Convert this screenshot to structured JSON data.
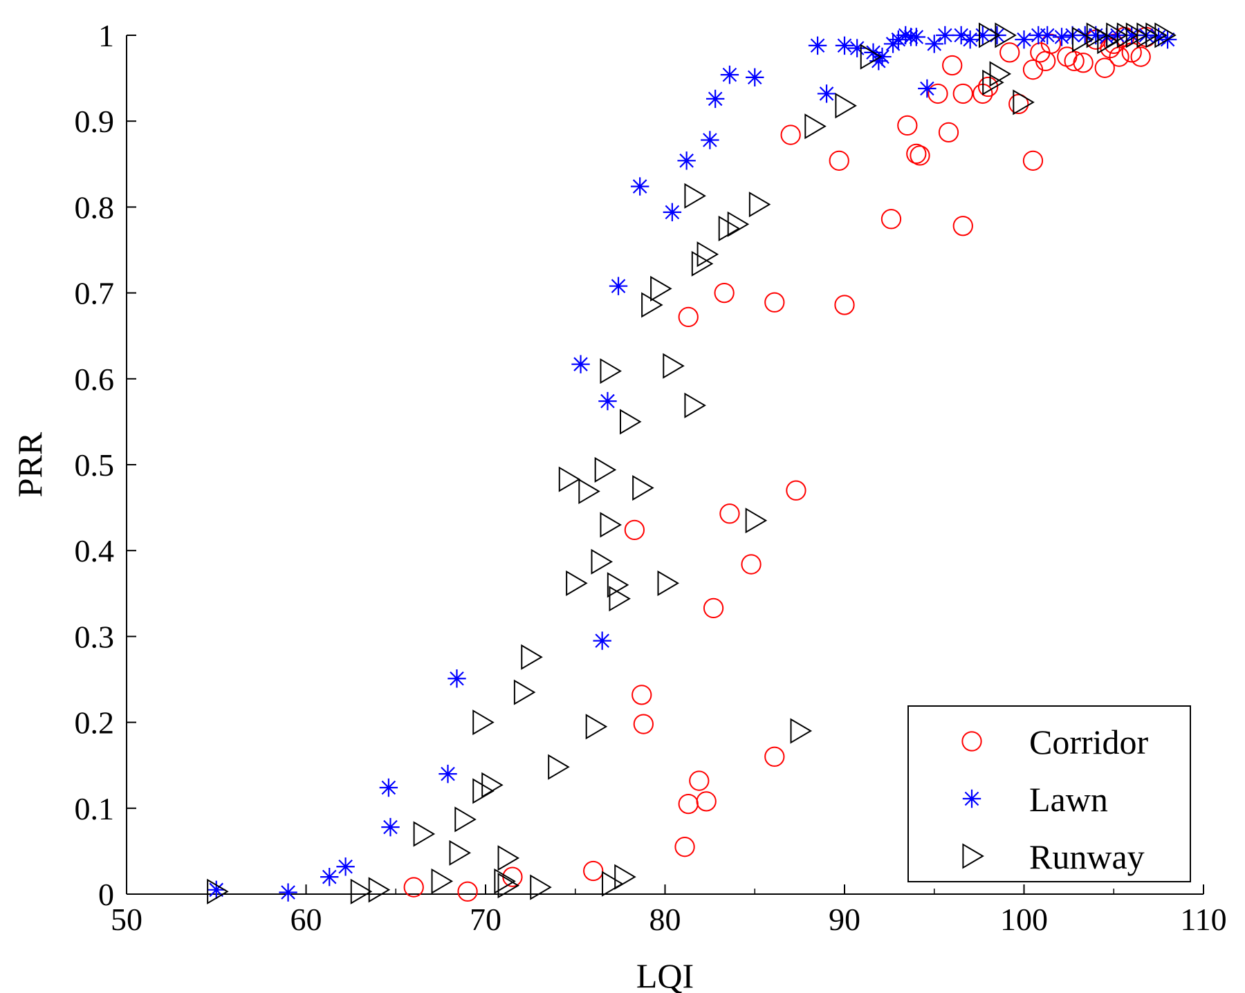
{
  "chart_data": {
    "type": "scatter",
    "title": "",
    "xlabel": "LQI",
    "ylabel": "PRR",
    "xlim": [
      50,
      110
    ],
    "ylim": [
      0,
      1
    ],
    "x_ticks": [
      50,
      60,
      70,
      80,
      90,
      100,
      110
    ],
    "y_ticks": [
      0,
      0.1,
      0.2,
      0.3,
      0.4,
      0.5,
      0.6,
      0.7,
      0.8,
      0.9,
      1
    ],
    "y_tick_labels": [
      "0",
      "0.1",
      "0.2",
      "0.3",
      "0.4",
      "0.5",
      "0.6",
      "0.7",
      "0.8",
      "0.9",
      "1"
    ],
    "grid": false,
    "legend_position": "bottom-right",
    "series": [
      {
        "name": "Corridor",
        "marker": "circle",
        "color": "#ff0000",
        "points": [
          [
            66.0,
            0.008
          ],
          [
            69.0,
            0.003
          ],
          [
            71.5,
            0.02
          ],
          [
            76.0,
            0.027
          ],
          [
            78.3,
            0.424
          ],
          [
            78.7,
            0.232
          ],
          [
            78.8,
            0.198
          ],
          [
            81.1,
            0.055
          ],
          [
            81.3,
            0.105
          ],
          [
            81.9,
            0.132
          ],
          [
            82.3,
            0.108
          ],
          [
            82.7,
            0.333
          ],
          [
            81.3,
            0.672
          ],
          [
            83.3,
            0.7
          ],
          [
            83.6,
            0.443
          ],
          [
            84.8,
            0.384
          ],
          [
            86.1,
            0.16
          ],
          [
            86.1,
            0.689
          ],
          [
            87.0,
            0.884
          ],
          [
            87.3,
            0.47
          ],
          [
            89.7,
            0.854
          ],
          [
            90.0,
            0.686
          ],
          [
            92.6,
            0.786
          ],
          [
            93.5,
            0.895
          ],
          [
            94.0,
            0.862
          ],
          [
            94.2,
            0.86
          ],
          [
            95.2,
            0.932
          ],
          [
            95.8,
            0.887
          ],
          [
            96.0,
            0.965
          ],
          [
            96.6,
            0.932
          ],
          [
            96.6,
            0.778
          ],
          [
            97.7,
            0.932
          ],
          [
            98.0,
            0.94
          ],
          [
            99.2,
            0.98
          ],
          [
            99.7,
            0.92
          ],
          [
            100.5,
            0.96
          ],
          [
            100.5,
            0.854
          ],
          [
            100.9,
            0.98
          ],
          [
            101.2,
            0.97
          ],
          [
            101.5,
            0.99
          ],
          [
            102.4,
            0.975
          ],
          [
            102.8,
            0.97
          ],
          [
            103.3,
            0.968
          ],
          [
            104.0,
            0.995
          ],
          [
            104.5,
            0.962
          ],
          [
            104.8,
            0.985
          ],
          [
            105.0,
            0.99
          ],
          [
            105.3,
            0.975
          ],
          [
            105.6,
            0.998
          ],
          [
            106.0,
            0.98
          ],
          [
            106.5,
            0.975
          ],
          [
            106.8,
            0.998
          ]
        ]
      },
      {
        "name": "Lawn",
        "marker": "asterisk",
        "color": "#0000ff",
        "points": [
          [
            55.0,
            0.005
          ],
          [
            59.0,
            0.002
          ],
          [
            61.3,
            0.02
          ],
          [
            62.2,
            0.032
          ],
          [
            64.6,
            0.124
          ],
          [
            64.7,
            0.078
          ],
          [
            67.9,
            0.14
          ],
          [
            68.4,
            0.251
          ],
          [
            75.3,
            0.617
          ],
          [
            76.5,
            0.295
          ],
          [
            76.8,
            0.574
          ],
          [
            77.4,
            0.708
          ],
          [
            78.6,
            0.824
          ],
          [
            80.4,
            0.794
          ],
          [
            81.2,
            0.854
          ],
          [
            82.5,
            0.878
          ],
          [
            82.8,
            0.926
          ],
          [
            83.6,
            0.954
          ],
          [
            85.0,
            0.951
          ],
          [
            88.5,
            0.988
          ],
          [
            89.0,
            0.932
          ],
          [
            90.0,
            0.988
          ],
          [
            90.7,
            0.985
          ],
          [
            91.6,
            0.98
          ],
          [
            91.9,
            0.97
          ],
          [
            92.1,
            0.975
          ],
          [
            92.7,
            0.99
          ],
          [
            93.0,
            0.995
          ],
          [
            93.4,
            1.0
          ],
          [
            93.7,
            0.998
          ],
          [
            94.0,
            0.998
          ],
          [
            94.6,
            0.938
          ],
          [
            95.0,
            0.99
          ],
          [
            95.6,
            1.0
          ],
          [
            96.5,
            1.0
          ],
          [
            97.0,
            0.995
          ],
          [
            97.7,
            1.0
          ],
          [
            98.5,
            1.0
          ],
          [
            100.0,
            0.995
          ],
          [
            100.8,
            1.0
          ],
          [
            101.3,
            1.0
          ],
          [
            102.1,
            0.998
          ],
          [
            102.7,
            1.0
          ],
          [
            103.4,
            1.0
          ],
          [
            104.0,
            1.0
          ],
          [
            104.6,
            0.998
          ],
          [
            105.2,
            1.0
          ],
          [
            106.0,
            1.0
          ],
          [
            106.8,
            1.0
          ],
          [
            107.5,
            0.998
          ],
          [
            108.0,
            0.995
          ]
        ]
      },
      {
        "name": "Runway",
        "marker": "triangle-right",
        "color": "#000000",
        "points": [
          [
            55.0,
            0.003
          ],
          [
            63.0,
            0.003
          ],
          [
            64.0,
            0.005
          ],
          [
            66.5,
            0.07
          ],
          [
            67.5,
            0.015
          ],
          [
            68.5,
            0.048
          ],
          [
            68.8,
            0.087
          ],
          [
            69.8,
            0.2
          ],
          [
            69.8,
            0.12
          ],
          [
            70.3,
            0.127
          ],
          [
            71.0,
            0.015
          ],
          [
            71.2,
            0.042
          ],
          [
            71.2,
            0.01
          ],
          [
            72.1,
            0.235
          ],
          [
            72.5,
            0.276
          ],
          [
            73.0,
            0.008
          ],
          [
            74.0,
            0.148
          ],
          [
            74.6,
            0.483
          ],
          [
            75.0,
            0.362
          ],
          [
            75.7,
            0.469
          ],
          [
            76.1,
            0.195
          ],
          [
            76.4,
            0.387
          ],
          [
            76.6,
            0.494
          ],
          [
            76.9,
            0.609
          ],
          [
            76.9,
            0.43
          ],
          [
            77.0,
            0.012
          ],
          [
            77.3,
            0.36
          ],
          [
            77.4,
            0.344
          ],
          [
            77.7,
            0.02
          ],
          [
            78.0,
            0.55
          ],
          [
            78.7,
            0.473
          ],
          [
            79.2,
            0.686
          ],
          [
            79.7,
            0.705
          ],
          [
            80.1,
            0.362
          ],
          [
            80.4,
            0.615
          ],
          [
            81.6,
            0.569
          ],
          [
            81.6,
            0.813
          ],
          [
            82.0,
            0.734
          ],
          [
            82.3,
            0.745
          ],
          [
            83.5,
            0.775
          ],
          [
            84.0,
            0.78
          ],
          [
            85.0,
            0.435
          ],
          [
            85.2,
            0.803
          ],
          [
            87.5,
            0.19
          ],
          [
            88.3,
            0.894
          ],
          [
            90.0,
            0.918
          ],
          [
            91.4,
            0.975
          ],
          [
            98.0,
            1.0
          ],
          [
            98.2,
            0.945
          ],
          [
            98.6,
            0.955
          ],
          [
            98.9,
            1.0
          ],
          [
            99.9,
            0.922
          ],
          [
            103.2,
            0.995
          ],
          [
            104.0,
            1.0
          ],
          [
            104.6,
            0.993
          ],
          [
            105.1,
            1.0
          ],
          [
            105.7,
            1.0
          ],
          [
            106.2,
            1.0
          ],
          [
            106.8,
            1.0
          ],
          [
            107.3,
            1.0
          ],
          [
            107.8,
            1.0
          ]
        ]
      }
    ]
  }
}
